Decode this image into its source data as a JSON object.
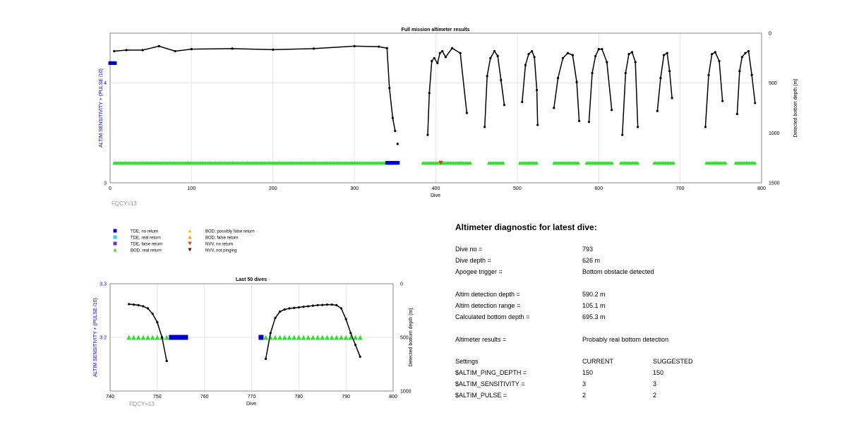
{
  "colors": {
    "tde_no_return": "#0000cc",
    "tde_real_return": "#33ccff",
    "tde_false_return": "#6633cc",
    "bod_real_return": "#33dd33",
    "bod_possibly_false": "#ffcc00",
    "bod_false_return": "#ff9900",
    "nvv_no_return": "#ee3300",
    "nvv_not_pinging": "#660000",
    "depth_line": "#000000",
    "left_axis": "#0000cc",
    "fqcy_text": "#999999"
  },
  "legend": {
    "items": [
      {
        "label": "TDE, no return",
        "marker": "square",
        "color_key": "tde_no_return"
      },
      {
        "label": "TDE, real return",
        "marker": "square",
        "color_key": "tde_real_return"
      },
      {
        "label": "TDE, false return",
        "marker": "square",
        "color_key": "tde_false_return"
      },
      {
        "label": "BOD, real return",
        "marker": "triangle-up",
        "color_key": "bod_real_return"
      },
      {
        "label": "BOD, possibly false return",
        "marker": "triangle-up",
        "color_key": "bod_possibly_false"
      },
      {
        "label": "BOD, false return",
        "marker": "triangle-up",
        "color_key": "bod_false_return"
      },
      {
        "label": "NVV, no return",
        "marker": "triangle-down",
        "color_key": "nvv_no_return"
      },
      {
        "label": "NVV, not pinging",
        "marker": "triangle-down",
        "color_key": "nvv_not_pinging"
      }
    ]
  },
  "diagnostic": {
    "title": "Altimeter diagnostic for latest dive:",
    "rows": [
      {
        "label": "Dive no =",
        "value": "793"
      },
      {
        "label": "Dive depth =",
        "value": "626 m"
      },
      {
        "label": "Apogee trigger =",
        "value": "Bottom obstacle detected"
      },
      {
        "label": "Altim detection depth =",
        "value": "590.2 m"
      },
      {
        "label": "Altim detection range =",
        "value": "105.1 m"
      },
      {
        "label": "Calculated bottom depth =",
        "value": "695.3 m"
      },
      {
        "label": "Altimeter results =",
        "value": "Probably real bottom detection"
      }
    ],
    "settings": {
      "header": [
        "Settings",
        "CURRENT",
        "SUGGESTED"
      ],
      "rows": [
        {
          "name": "$ALTIM_PING_DEPTH =",
          "current": "150",
          "suggested": "150"
        },
        {
          "name": "$ALTIM_SENSITIVITY =",
          "current": "3",
          "suggested": "3"
        },
        {
          "name": "$ALTIM_PULSE =",
          "current": "2",
          "suggested": "2"
        }
      ]
    }
  },
  "chart_data": [
    {
      "type": "scatter",
      "title": "Full mission altimeter results",
      "xlabel": "Dive",
      "ylabel": "ALTIM SENSITIVITY + (PULSE /10)",
      "y2label": "Detected bottom depth (m)",
      "xlim": [
        0,
        800
      ],
      "ylim": [
        3,
        4.5
      ],
      "y2lim": [
        1500,
        0
      ],
      "y2_reversed": true,
      "xticks": [
        "0",
        "100",
        "200",
        "300",
        "400",
        "500",
        "600",
        "700",
        "800"
      ],
      "yticks": [
        "3",
        "4"
      ],
      "y2ticks": [
        "0",
        "500",
        "1000",
        "1500"
      ],
      "grid": true,
      "footer_text": "FQCY=13",
      "sensitivity_points": [
        {
          "x": [
            0,
            6
          ],
          "y": 4.2,
          "marker": "square",
          "color_key": "tde_no_return"
        }
      ],
      "detection_segments": [
        {
          "x_start": 5,
          "x_end": 340,
          "y": 3.2,
          "kind": "bod_real_return"
        },
        {
          "x_start": 340,
          "x_end": 354,
          "y": 3.2,
          "kind": "tde_no_return"
        },
        {
          "x_start": 384,
          "x_end": 443,
          "y": 3.2,
          "kind": "bod_real_return"
        },
        {
          "x_start": 465,
          "x_end": 484,
          "y": 3.2,
          "kind": "bod_real_return"
        },
        {
          "x_start": 503,
          "x_end": 525,
          "y": 3.2,
          "kind": "bod_real_return"
        },
        {
          "x_start": 545,
          "x_end": 575,
          "y": 3.2,
          "kind": "bod_real_return"
        },
        {
          "x_start": 585,
          "x_end": 617,
          "y": 3.2,
          "kind": "bod_real_return"
        },
        {
          "x_start": 627,
          "x_end": 648,
          "y": 3.2,
          "kind": "bod_real_return"
        },
        {
          "x_start": 668,
          "x_end": 693,
          "y": 3.2,
          "kind": "bod_real_return"
        },
        {
          "x_start": 732,
          "x_end": 756,
          "y": 3.2,
          "kind": "bod_real_return"
        },
        {
          "x_start": 768,
          "x_end": 793,
          "y": 3.2,
          "kind": "bod_real_return"
        }
      ],
      "detection_points": [
        {
          "x": 406,
          "y": 3.2,
          "kind": "nvv_no_return"
        }
      ],
      "depth_series": [
        {
          "x": [
            5,
            20,
            40,
            60,
            80,
            100,
            150,
            200,
            250,
            300,
            330,
            340,
            343,
            347,
            350
          ],
          "y": [
            180,
            170,
            170,
            130,
            180,
            160,
            155,
            165,
            155,
            130,
            135,
            150,
            550,
            850,
            980
          ]
        },
        {
          "x": [
            353
          ],
          "y": [
            1110
          ]
        },
        {
          "x": [
            390,
            392,
            395,
            398,
            402,
            405,
            408,
            412,
            420,
            430,
            438
          ],
          "y": [
            1020,
            600,
            280,
            250,
            300,
            200,
            180,
            240,
            150,
            200,
            800
          ]
        },
        {
          "x": [
            460,
            463,
            467,
            472,
            476,
            480,
            484
          ],
          "y": [
            940,
            430,
            250,
            180,
            230,
            470,
            720
          ]
        },
        {
          "x": [
            506,
            510,
            514,
            518,
            521,
            524,
            525
          ],
          "y": [
            690,
            320,
            210,
            180,
            240,
            570,
            920
          ]
        },
        {
          "x": [
            545,
            550,
            556,
            562,
            568,
            573,
            576
          ],
          "y": [
            750,
            450,
            250,
            200,
            220,
            490,
            880
          ]
        },
        {
          "x": [
            588,
            592,
            596,
            600,
            604,
            610,
            616
          ],
          "y": [
            890,
            400,
            230,
            160,
            160,
            290,
            770
          ]
        },
        {
          "x": [
            629,
            633,
            637,
            641,
            645,
            648
          ],
          "y": [
            1020,
            400,
            210,
            190,
            290,
            940
          ]
        },
        {
          "x": [
            672,
            676,
            680,
            684,
            687,
            690
          ],
          "y": [
            780,
            450,
            220,
            200,
            380,
            650
          ]
        },
        {
          "x": [
            731,
            735,
            739,
            743,
            748,
            752
          ],
          "y": [
            940,
            420,
            210,
            190,
            280,
            680
          ]
        },
        {
          "x": [
            770,
            773,
            776,
            780,
            784,
            788,
            792
          ],
          "y": [
            810,
            380,
            240,
            200,
            180,
            420,
            700
          ]
        }
      ]
    },
    {
      "type": "scatter",
      "title": "Last 50 dives",
      "xlabel": "Dive",
      "ylabel": "ALTIM SENSITIVITY + (PULSE /10)",
      "y2label": "Detected bottom depth (m)",
      "xlim": [
        740,
        800
      ],
      "ylim": [
        3.1,
        3.3
      ],
      "y2lim": [
        1000,
        0
      ],
      "y2_reversed": true,
      "xticks": [
        "740",
        "750",
        "760",
        "770",
        "780",
        "790",
        "800"
      ],
      "yticks": [
        "3.2",
        "3.3"
      ],
      "y2ticks": [
        "0",
        "500",
        "1000"
      ],
      "grid": true,
      "footer_text": "FQCY=13",
      "detection_points": [
        {
          "x": [
            744,
            745,
            746,
            747,
            748,
            749,
            750,
            751,
            752
          ],
          "y": 3.2,
          "kind": "bod_real_return"
        },
        {
          "x": [
            753,
            754,
            755,
            756
          ],
          "y": 3.2,
          "kind": "tde_no_return"
        },
        {
          "x": [
            772
          ],
          "y": 3.2,
          "kind": "tde_no_return"
        },
        {
          "x": [
            773,
            774,
            775,
            776,
            777,
            778,
            779,
            780,
            781,
            782,
            783,
            784,
            785,
            786,
            787,
            788,
            789,
            790,
            791,
            792,
            793
          ],
          "y": 3.2,
          "kind": "bod_real_return"
        }
      ],
      "depth_series": [
        {
          "x": [
            744,
            745,
            746,
            747,
            748,
            749,
            750,
            751,
            752
          ],
          "y": [
            190,
            195,
            200,
            210,
            230,
            280,
            360,
            500,
            720
          ]
        },
        {
          "x": [
            773,
            774,
            775,
            776,
            777,
            778,
            779,
            780,
            781,
            782,
            783,
            784,
            785,
            786,
            787,
            788,
            789,
            790,
            791,
            792,
            793
          ],
          "y": [
            700,
            460,
            320,
            260,
            240,
            230,
            225,
            220,
            215,
            210,
            205,
            200,
            198,
            195,
            195,
            200,
            230,
            330,
            460,
            570,
            680
          ]
        }
      ]
    }
  ]
}
